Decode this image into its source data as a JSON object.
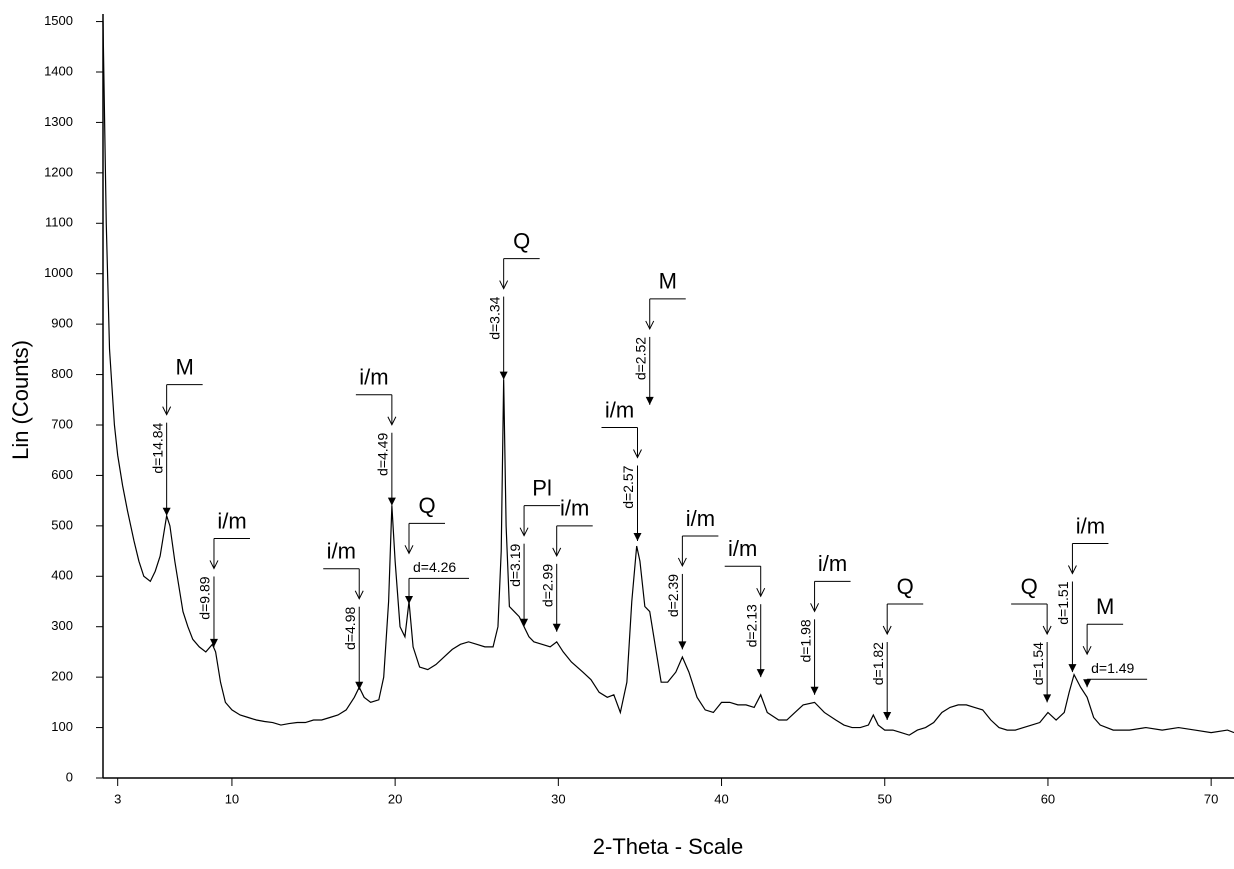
{
  "chart_data": {
    "type": "line",
    "xlabel": "2-Theta - Scale",
    "ylabel": "Lin (Counts)",
    "xlim": [
      2.1,
      71.4
    ],
    "ylim": [
      0,
      1515
    ],
    "xticks": [
      3,
      10,
      20,
      30,
      40,
      50,
      60,
      70
    ],
    "yticks": [
      0,
      100,
      200,
      300,
      400,
      500,
      600,
      700,
      800,
      900,
      1000,
      1100,
      1200,
      1300,
      1400,
      1500
    ],
    "color": "#000000",
    "x": [
      2.1,
      2.3,
      2.5,
      2.8,
      3.0,
      3.3,
      3.6,
      4.0,
      4.3,
      4.6,
      5.0,
      5.3,
      5.6,
      5.8,
      6.0,
      6.2,
      6.5,
      6.8,
      7.0,
      7.3,
      7.6,
      8.0,
      8.4,
      8.8,
      9.0,
      9.3,
      9.6,
      10.0,
      10.5,
      11,
      11.5,
      12,
      12.5,
      13,
      13.5,
      14,
      14.5,
      15,
      15.5,
      16,
      16.5,
      17,
      17.5,
      17.8,
      18.1,
      18.5,
      19,
      19.3,
      19.6,
      19.8,
      20.0,
      20.3,
      20.6,
      20.85,
      21.1,
      21.5,
      22,
      22.5,
      23,
      23.5,
      24,
      24.5,
      25,
      25.5,
      26.0,
      26.3,
      26.5,
      26.65,
      26.8,
      27.0,
      27.3,
      27.6,
      27.9,
      28.2,
      28.5,
      29,
      29.5,
      29.9,
      30.3,
      30.8,
      31.5,
      32,
      32.5,
      33,
      33.4,
      33.8,
      34.2,
      34.5,
      34.8,
      35.0,
      35.3,
      35.6,
      36,
      36.3,
      36.7,
      37.2,
      37.6,
      38,
      38.5,
      39,
      39.5,
      40,
      40.5,
      41,
      41.5,
      42,
      42.4,
      42.8,
      43.5,
      44,
      44.5,
      45,
      45.7,
      46.3,
      47,
      47.5,
      48,
      48.5,
      49,
      49.3,
      49.6,
      50,
      50.5,
      51,
      51.5,
      52,
      52.5,
      53,
      53.5,
      54,
      54.5,
      55,
      55.5,
      56,
      56.5,
      57,
      57.5,
      58,
      58.5,
      59,
      59.5,
      60,
      60.5,
      61,
      61.3,
      61.6,
      62,
      62.4,
      62.8,
      63.2,
      64,
      65,
      66,
      67,
      68,
      69,
      70,
      71,
      71.4
    ],
    "values": [
      1500,
      1100,
      850,
      700,
      640,
      580,
      530,
      470,
      430,
      400,
      390,
      410,
      440,
      480,
      520,
      500,
      430,
      370,
      330,
      300,
      275,
      260,
      250,
      265,
      250,
      190,
      150,
      135,
      125,
      120,
      115,
      112,
      110,
      105,
      108,
      110,
      110,
      115,
      115,
      120,
      125,
      135,
      160,
      180,
      160,
      150,
      155,
      200,
      350,
      540,
      430,
      300,
      280,
      350,
      260,
      220,
      215,
      225,
      240,
      255,
      265,
      270,
      265,
      260,
      260,
      300,
      450,
      790,
      500,
      340,
      330,
      320,
      300,
      280,
      270,
      265,
      260,
      270,
      250,
      230,
      210,
      195,
      170,
      160,
      165,
      130,
      190,
      350,
      460,
      430,
      340,
      330,
      250,
      190,
      190,
      210,
      240,
      210,
      160,
      135,
      130,
      150,
      150,
      145,
      145,
      140,
      165,
      130,
      115,
      115,
      130,
      145,
      150,
      130,
      115,
      105,
      100,
      100,
      105,
      125,
      105,
      95,
      95,
      90,
      85,
      95,
      100,
      110,
      130,
      140,
      145,
      145,
      140,
      135,
      115,
      100,
      95,
      95,
      100,
      105,
      110,
      130,
      115,
      130,
      170,
      205,
      180,
      160,
      120,
      105,
      95,
      95,
      100,
      95,
      100,
      95,
      90,
      95,
      90
    ],
    "annotations": [
      {
        "label": "M",
        "d": "d=14.84",
        "x": 6.0,
        "top": 780,
        "tip": 520
      },
      {
        "label": "i/m",
        "d": "d=9.89",
        "x": 8.9,
        "top": 475,
        "tip": 260
      },
      {
        "label": "i/m",
        "d": "d=4.98",
        "x": 17.8,
        "top": 415,
        "tip": 175
      },
      {
        "label": "i/m",
        "d": "d=4.49",
        "x": 19.8,
        "top": 760,
        "tip": 540
      },
      {
        "label": "Q",
        "d": "d=4.26",
        "x": 20.85,
        "top": 505,
        "tip": 345
      },
      {
        "label": "Q",
        "d": "d=3.34",
        "x": 26.65,
        "top": 1030,
        "tip": 790
      },
      {
        "label": "Pl",
        "d": "d=3.19",
        "x": 27.9,
        "top": 540,
        "tip": 300
      },
      {
        "label": "i/m",
        "d": "d=2.99",
        "x": 29.9,
        "top": 500,
        "tip": 290
      },
      {
        "label": "i/m",
        "d": "d=2.57",
        "x": 34.85,
        "top": 695,
        "tip": 470
      },
      {
        "label": "M",
        "d": "d=2.52",
        "x": 35.6,
        "top": 950,
        "tip": 740
      },
      {
        "label": "i/m",
        "d": "d=2.39",
        "x": 37.6,
        "top": 480,
        "tip": 255
      },
      {
        "label": "i/m",
        "d": "d=2.13",
        "x": 42.4,
        "top": 420,
        "tip": 200
      },
      {
        "label": "i/m",
        "d": "d=1.98",
        "x": 45.7,
        "top": 390,
        "tip": 165
      },
      {
        "label": "Q",
        "d": "d=1.82",
        "x": 50.15,
        "top": 345,
        "tip": 115
      },
      {
        "label": "Q",
        "d": "d=1.54",
        "x": 59.95,
        "top": 345,
        "tip": 150
      },
      {
        "label": "i/m",
        "d": "d=1.51",
        "x": 61.5,
        "top": 465,
        "tip": 210
      },
      {
        "label": "M",
        "d": "d=1.49",
        "x": 62.4,
        "top": 305,
        "tip": 180
      }
    ]
  }
}
